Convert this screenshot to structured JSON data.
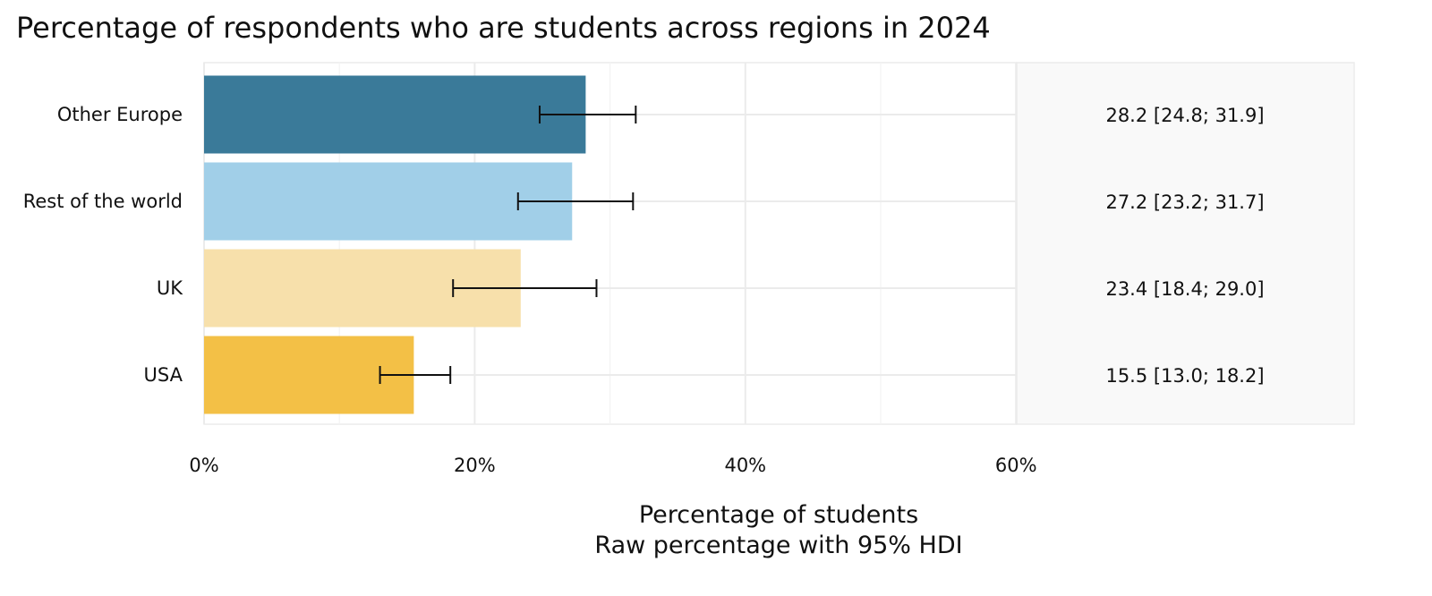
{
  "chart_data": {
    "type": "bar",
    "orientation": "horizontal",
    "title": "Percentage of respondents who are students across regions in 2024",
    "xlabel": "Percentage of students",
    "xlabel_sub": "Raw percentage with 95% HDI",
    "ylabel": "",
    "xlim": [
      0,
      60
    ],
    "x_ticks": [
      0,
      20,
      40,
      60
    ],
    "x_tick_labels": [
      "0%",
      "20%",
      "40%",
      "60%"
    ],
    "grid": true,
    "legend": "none",
    "categories": [
      "Other Europe",
      "Rest of the world",
      "UK",
      "USA"
    ],
    "values": [
      28.2,
      27.2,
      23.4,
      15.5
    ],
    "ci_low": [
      24.8,
      23.2,
      18.4,
      13.0
    ],
    "ci_high": [
      31.9,
      31.7,
      29.0,
      18.2
    ],
    "annotations": [
      "28.2 [24.8; 31.9]",
      "27.2 [23.2; 31.7]",
      "23.4 [18.4; 29.0]",
      "15.5 [13.0; 18.2]"
    ],
    "colors": [
      "#3a7a99",
      "#a1cfe8",
      "#f7e0ab",
      "#f3c046"
    ]
  }
}
